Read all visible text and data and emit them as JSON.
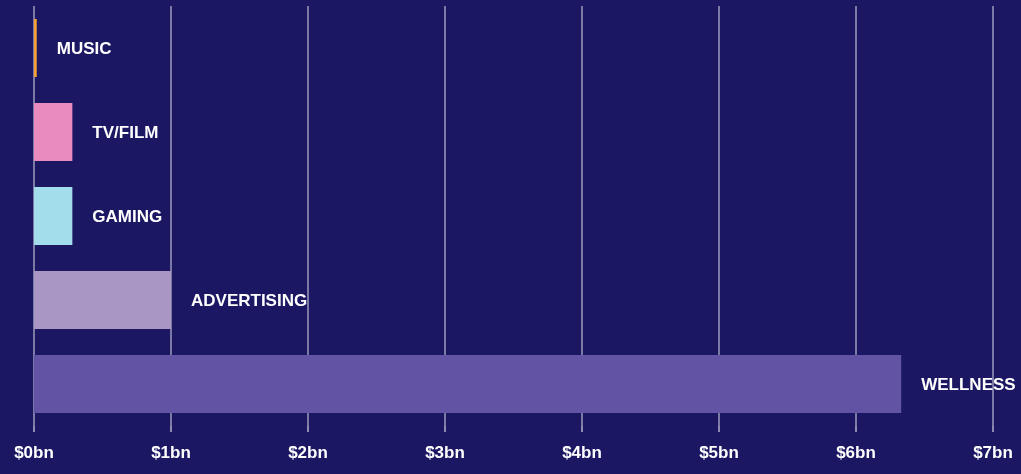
{
  "chart_data": {
    "type": "bar",
    "orientation": "horizontal",
    "categories": [
      "MUSIC",
      "TV/FILM",
      "GAMING",
      "ADVERTISING",
      "WELLNESS"
    ],
    "values": [
      0.02,
      0.28,
      0.28,
      1.0,
      6.33
    ],
    "colors": [
      "#f5a030",
      "#ea8bbf",
      "#a3dcea",
      "#a996c4",
      "#6353a4"
    ],
    "xlim": [
      0,
      7
    ],
    "xticks": [
      {
        "value": 0,
        "label": "$0bn"
      },
      {
        "value": 1,
        "label": "$1bn"
      },
      {
        "value": 2,
        "label": "$2bn"
      },
      {
        "value": 3,
        "label": "$3bn"
      },
      {
        "value": 4,
        "label": "$4bn"
      },
      {
        "value": 5,
        "label": "$5bn"
      },
      {
        "value": 6,
        "label": "$6bn"
      },
      {
        "value": 7,
        "label": "$7bn"
      }
    ],
    "grid": "x",
    "tick_labels": "x"
  }
}
